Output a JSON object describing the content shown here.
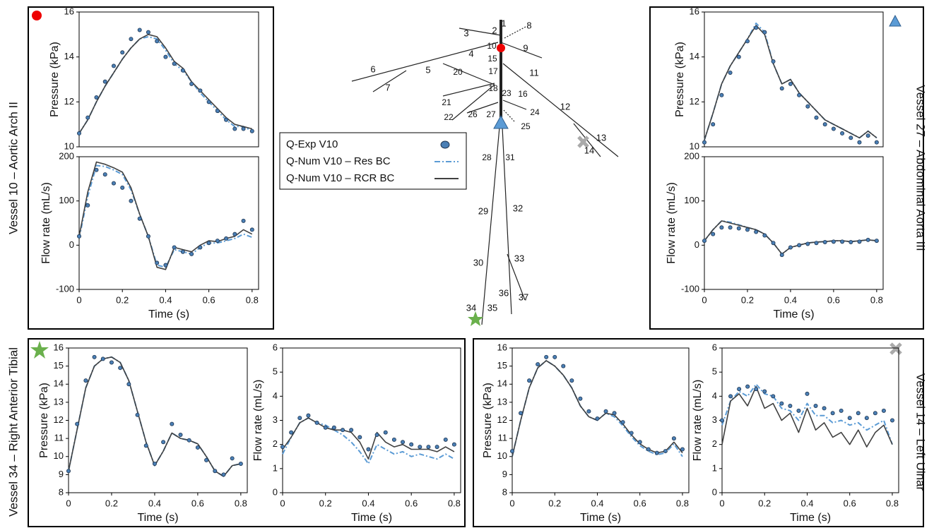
{
  "panels": [
    {
      "title": "Vessel 10 – Aortic Arch II"
    },
    {
      "title": "Vessel 27 – Abdominal Aorta III"
    },
    {
      "title": "Vessel 34 – Right Anterior Tibial"
    },
    {
      "title": "Vessel 14 – Left Ulnar"
    }
  ],
  "diagram": {
    "labels": [
      "1",
      "2",
      "3",
      "4",
      "5",
      "6",
      "7",
      "8",
      "9",
      "10",
      "11",
      "12",
      "13",
      "14",
      "15",
      "16",
      "17",
      "18",
      "20",
      "21",
      "22",
      "23",
      "24",
      "25",
      "26",
      "27",
      "28",
      "29",
      "30",
      "31",
      "32",
      "33",
      "34",
      "35",
      "36",
      "37"
    ]
  },
  "chart_data": [
    {
      "type": "line",
      "ylabel": "Pressure (kPa)",
      "xlim": [
        0,
        0.83
      ],
      "ylim": [
        10,
        16
      ],
      "yticks": [
        10,
        12,
        14,
        16
      ],
      "x": [
        0,
        0.04,
        0.08,
        0.12,
        0.16,
        0.2,
        0.24,
        0.28,
        0.32,
        0.36,
        0.4,
        0.44,
        0.48,
        0.52,
        0.56,
        0.6,
        0.64,
        0.68,
        0.72,
        0.76,
        0.8
      ],
      "series": [
        {
          "name": "Q-Exp  V10",
          "color": "#4a7fb5",
          "style": "markers",
          "values": [
            10.6,
            11.3,
            12.2,
            12.9,
            13.6,
            14.2,
            14.8,
            15.2,
            15.1,
            14.7,
            14.0,
            13.7,
            13.4,
            12.8,
            12.5,
            12.0,
            11.6,
            11.2,
            10.8,
            10.8,
            10.7
          ]
        },
        {
          "name": "Q-Num V10 – Res BC",
          "color": "#5b9bd5",
          "style": "dash",
          "values": [
            10.6,
            11.2,
            12.0,
            12.7,
            13.3,
            13.9,
            14.4,
            14.8,
            14.9,
            14.8,
            14.3,
            13.7,
            13.4,
            12.9,
            12.4,
            12.0,
            11.6,
            11.2,
            10.9,
            10.9,
            10.7
          ]
        },
        {
          "name": "Q-Num V10 – RCR BC",
          "color": "#404040",
          "style": "solid",
          "values": [
            10.6,
            11.2,
            12.0,
            12.7,
            13.3,
            13.9,
            14.4,
            14.8,
            15.0,
            14.9,
            14.4,
            13.8,
            13.5,
            12.9,
            12.5,
            12.1,
            11.7,
            11.3,
            11.0,
            10.9,
            10.8
          ]
        }
      ]
    },
    {
      "type": "line",
      "xlabel": "Time (s)",
      "ylabel": "Flow rate (mL/s)",
      "xlim": [
        0,
        0.83
      ],
      "ylim": [
        -100,
        200
      ],
      "xticks": [
        0,
        0.2,
        0.4,
        0.6,
        0.8
      ],
      "yticks": [
        -100,
        0,
        100,
        200
      ],
      "x": [
        0,
        0.04,
        0.08,
        0.12,
        0.16,
        0.2,
        0.24,
        0.28,
        0.32,
        0.36,
        0.4,
        0.44,
        0.48,
        0.52,
        0.56,
        0.6,
        0.64,
        0.68,
        0.72,
        0.76,
        0.8
      ],
      "series": [
        {
          "name": "Q-Exp  V10",
          "color": "#4a7fb5",
          "style": "markers",
          "values": [
            20,
            90,
            170,
            160,
            140,
            130,
            100,
            60,
            20,
            -40,
            -45,
            -5,
            -15,
            -20,
            -5,
            5,
            10,
            15,
            25,
            55,
            35
          ]
        },
        {
          "name": "Q-Num V10 – Res BC",
          "color": "#5b9bd5",
          "style": "dash",
          "values": [
            15,
            110,
            180,
            178,
            170,
            160,
            125,
            70,
            20,
            -45,
            -50,
            -10,
            -15,
            -20,
            -5,
            5,
            5,
            10,
            15,
            25,
            18
          ]
        },
        {
          "name": "Q-Num V10 – RCR BC",
          "color": "#404040",
          "style": "solid",
          "values": [
            20,
            120,
            188,
            183,
            175,
            165,
            130,
            70,
            20,
            -50,
            -55,
            -5,
            -10,
            -15,
            0,
            10,
            8,
            15,
            20,
            35,
            25
          ]
        }
      ]
    },
    {
      "type": "line",
      "ylabel": "Pressure (kPa)",
      "xlim": [
        0,
        0.83
      ],
      "ylim": [
        10,
        16
      ],
      "yticks": [
        10,
        12,
        14,
        16
      ],
      "x": [
        0,
        0.04,
        0.08,
        0.12,
        0.16,
        0.2,
        0.24,
        0.28,
        0.32,
        0.36,
        0.4,
        0.44,
        0.48,
        0.52,
        0.56,
        0.6,
        0.64,
        0.68,
        0.72,
        0.76,
        0.8
      ],
      "series": [
        {
          "name": "Q-Exp  V10",
          "color": "#4a7fb5",
          "style": "markers",
          "values": [
            10.2,
            11.0,
            12.3,
            13.3,
            14.0,
            14.7,
            15.3,
            15.1,
            13.8,
            12.6,
            12.8,
            12.3,
            11.8,
            11.3,
            11.0,
            10.8,
            10.6,
            10.4,
            10.2,
            10.5,
            10.2
          ]
        },
        {
          "name": "Q-Num V10 – Res BC",
          "color": "#5b9bd5",
          "style": "dash",
          "values": [
            10.3,
            11.5,
            12.8,
            13.6,
            14.2,
            14.8,
            15.5,
            15.1,
            13.7,
            12.8,
            13.0,
            12.4,
            12.0,
            11.6,
            11.2,
            11.0,
            10.8,
            10.6,
            10.4,
            10.7,
            10.4
          ]
        },
        {
          "name": "Q-Num V10 – RCR BC",
          "color": "#404040",
          "style": "solid",
          "values": [
            10.3,
            11.5,
            12.8,
            13.6,
            14.2,
            14.8,
            15.4,
            15.0,
            13.7,
            12.8,
            13.0,
            12.4,
            12.0,
            11.6,
            11.2,
            11.0,
            10.8,
            10.6,
            10.4,
            10.7,
            10.4
          ]
        }
      ]
    },
    {
      "type": "line",
      "xlabel": "Time (s)",
      "ylabel": "Flow rate (mL/s)",
      "xlim": [
        0,
        0.83
      ],
      "ylim": [
        -100,
        200
      ],
      "xticks": [
        0,
        0.2,
        0.4,
        0.6,
        0.8
      ],
      "yticks": [
        -100,
        0,
        100,
        200
      ],
      "x": [
        0,
        0.04,
        0.08,
        0.12,
        0.16,
        0.2,
        0.24,
        0.28,
        0.32,
        0.36,
        0.4,
        0.44,
        0.48,
        0.52,
        0.56,
        0.6,
        0.64,
        0.68,
        0.72,
        0.76,
        0.8
      ],
      "series": [
        {
          "name": "Q-Exp  V10",
          "color": "#4a7fb5",
          "style": "markers",
          "values": [
            10,
            25,
            40,
            40,
            38,
            35,
            30,
            22,
            5,
            -22,
            -5,
            0,
            3,
            5,
            7,
            8,
            8,
            7,
            8,
            12,
            10
          ]
        },
        {
          "name": "Q-Num V10 – Res BC",
          "color": "#5b9bd5",
          "style": "dash",
          "values": [
            10,
            35,
            55,
            52,
            46,
            40,
            35,
            25,
            5,
            -20,
            -5,
            0,
            5,
            7,
            8,
            10,
            10,
            8,
            10,
            12,
            10
          ]
        },
        {
          "name": "Q-Num V10 – RCR BC",
          "color": "#404040",
          "style": "solid",
          "values": [
            10,
            35,
            55,
            50,
            45,
            40,
            35,
            25,
            5,
            -20,
            -5,
            0,
            5,
            7,
            8,
            10,
            10,
            8,
            10,
            12,
            10
          ]
        }
      ]
    },
    {
      "type": "line",
      "xlabel": "Time (s)",
      "ylabel": "Pressure (kPa)",
      "xlim": [
        0,
        0.83
      ],
      "ylim": [
        8,
        16
      ],
      "xticks": [
        0,
        0.2,
        0.4,
        0.6,
        0.8
      ],
      "yticks": [
        8,
        9,
        10,
        11,
        12,
        13,
        14,
        15,
        16
      ],
      "x": [
        0,
        0.04,
        0.08,
        0.12,
        0.16,
        0.2,
        0.24,
        0.28,
        0.32,
        0.36,
        0.4,
        0.44,
        0.48,
        0.52,
        0.56,
        0.6,
        0.64,
        0.68,
        0.72,
        0.76,
        0.8
      ],
      "series": [
        {
          "name": "Q-Exp  V10",
          "color": "#4a7fb5",
          "style": "markers",
          "values": [
            9.2,
            11.8,
            14.2,
            15.5,
            15.4,
            15.2,
            14.9,
            14.0,
            12.3,
            10.6,
            9.6,
            10.8,
            11.8,
            11.2,
            10.9,
            10.5,
            9.8,
            9.2,
            9.0,
            9.9,
            9.6
          ]
        },
        {
          "name": "Q-Num V10 – Res BC",
          "color": "#5b9bd5",
          "style": "dash",
          "values": [
            9.2,
            11.5,
            13.8,
            15.0,
            15.4,
            15.5,
            15.2,
            14.2,
            12.5,
            10.8,
            9.5,
            10.3,
            11.3,
            11.0,
            10.9,
            10.7,
            10.0,
            9.2,
            8.9,
            9.5,
            9.6
          ]
        },
        {
          "name": "Q-Num V10 – RCR BC",
          "color": "#404040",
          "style": "solid",
          "values": [
            9.2,
            11.5,
            13.8,
            15.0,
            15.4,
            15.5,
            15.2,
            14.2,
            12.5,
            10.8,
            9.5,
            10.3,
            11.3,
            11.0,
            10.9,
            10.7,
            10.0,
            9.2,
            8.9,
            9.5,
            9.6
          ]
        }
      ]
    },
    {
      "type": "line",
      "xlabel": "Time (s)",
      "ylabel": "Flow rate (mL/s)",
      "xlim": [
        0,
        0.83
      ],
      "ylim": [
        0,
        6
      ],
      "xticks": [
        0,
        0.2,
        0.4,
        0.6,
        0.8
      ],
      "yticks": [
        0,
        1,
        2,
        3,
        4,
        5,
        6
      ],
      "x": [
        0,
        0.04,
        0.08,
        0.12,
        0.16,
        0.2,
        0.24,
        0.28,
        0.32,
        0.36,
        0.4,
        0.44,
        0.48,
        0.52,
        0.56,
        0.6,
        0.64,
        0.68,
        0.72,
        0.76,
        0.8
      ],
      "series": [
        {
          "name": "Q-Exp  V10",
          "color": "#4a7fb5",
          "style": "markers",
          "values": [
            1.9,
            2.5,
            3.1,
            3.2,
            2.9,
            2.7,
            2.7,
            2.6,
            2.6,
            2.3,
            1.8,
            2.4,
            2.5,
            2.2,
            2.1,
            2.0,
            1.9,
            1.9,
            1.9,
            2.2,
            2.0
          ]
        },
        {
          "name": "Q-Num V10 – Res BC",
          "color": "#5b9bd5",
          "style": "dash",
          "values": [
            1.6,
            2.3,
            2.9,
            3.1,
            2.9,
            2.8,
            2.6,
            2.4,
            2.1,
            1.7,
            1.2,
            2.0,
            1.8,
            1.6,
            1.7,
            1.5,
            1.6,
            1.5,
            1.4,
            1.6,
            1.4
          ]
        },
        {
          "name": "Q-Num V10 – RCR BC",
          "color": "#404040",
          "style": "solid",
          "values": [
            1.8,
            2.3,
            2.9,
            3.1,
            2.9,
            2.7,
            2.6,
            2.6,
            2.5,
            2.1,
            1.4,
            2.5,
            2.1,
            1.9,
            2.0,
            1.8,
            1.8,
            1.8,
            1.7,
            1.9,
            1.7
          ]
        }
      ]
    },
    {
      "type": "line",
      "xlabel": "Time (s)",
      "ylabel": "Pressure (kPa)",
      "xlim": [
        0,
        0.83
      ],
      "ylim": [
        8,
        16
      ],
      "xticks": [
        0,
        0.2,
        0.4,
        0.6,
        0.8
      ],
      "yticks": [
        8,
        9,
        10,
        11,
        12,
        13,
        14,
        15,
        16
      ],
      "x": [
        0,
        0.04,
        0.08,
        0.12,
        0.16,
        0.2,
        0.24,
        0.28,
        0.32,
        0.36,
        0.4,
        0.44,
        0.48,
        0.52,
        0.56,
        0.6,
        0.64,
        0.68,
        0.72,
        0.76,
        0.8
      ],
      "series": [
        {
          "name": "Q-Exp  V10",
          "color": "#4a7fb5",
          "style": "markers",
          "values": [
            10.3,
            12.4,
            14.2,
            15.1,
            15.5,
            15.5,
            15.0,
            14.2,
            13.2,
            12.5,
            12.1,
            12.5,
            12.4,
            11.9,
            11.3,
            10.8,
            10.4,
            10.2,
            10.3,
            11.0,
            10.4
          ]
        },
        {
          "name": "Q-Num V10 – Res BC",
          "color": "#5b9bd5",
          "style": "dash",
          "values": [
            10.0,
            12.0,
            13.8,
            14.9,
            15.3,
            15.0,
            14.5,
            13.8,
            12.8,
            12.2,
            12.0,
            12.4,
            12.2,
            11.7,
            11.1,
            10.6,
            10.3,
            10.1,
            10.2,
            10.7,
            10.0
          ]
        },
        {
          "name": "Q-Num V10 – RCR BC",
          "color": "#404040",
          "style": "solid",
          "values": [
            10.0,
            12.0,
            13.8,
            14.9,
            15.3,
            15.0,
            14.5,
            13.8,
            12.8,
            12.2,
            12.0,
            12.4,
            12.3,
            11.8,
            11.2,
            10.7,
            10.4,
            10.2,
            10.3,
            10.8,
            10.2
          ]
        }
      ]
    },
    {
      "type": "line",
      "xlabel": "Time (s)",
      "ylabel": "Flow rate (mL/s)",
      "xlim": [
        0,
        0.83
      ],
      "ylim": [
        0,
        6
      ],
      "xticks": [
        0,
        0.2,
        0.4,
        0.6,
        0.8
      ],
      "yticks": [
        0,
        1,
        2,
        3,
        4,
        5,
        6
      ],
      "x": [
        0,
        0.04,
        0.08,
        0.12,
        0.16,
        0.2,
        0.24,
        0.28,
        0.32,
        0.36,
        0.4,
        0.44,
        0.48,
        0.52,
        0.56,
        0.6,
        0.64,
        0.68,
        0.72,
        0.76,
        0.8
      ],
      "series": [
        {
          "name": "Q-Exp  V10",
          "color": "#4a7fb5",
          "style": "markers",
          "values": [
            3.0,
            4.0,
            4.3,
            4.4,
            4.3,
            4.2,
            4.0,
            3.7,
            3.6,
            3.4,
            4.1,
            3.6,
            3.5,
            3.3,
            3.4,
            3.1,
            3.3,
            3.1,
            3.3,
            3.4,
            3.0
          ]
        },
        {
          "name": "Q-Num V10 – Res BC",
          "color": "#5b9bd5",
          "style": "dash",
          "values": [
            2.8,
            3.8,
            4.2,
            4.0,
            4.5,
            4.1,
            4.0,
            3.5,
            3.4,
            3.0,
            3.7,
            3.2,
            3.2,
            2.9,
            3.0,
            2.8,
            2.9,
            2.6,
            2.8,
            3.0,
            2.0
          ]
        },
        {
          "name": "Q-Num V10 – RCR BC",
          "color": "#404040",
          "style": "solid",
          "values": [
            2.0,
            3.8,
            4.1,
            3.6,
            4.4,
            3.5,
            3.7,
            3.0,
            3.3,
            2.5,
            3.5,
            2.6,
            2.9,
            2.3,
            2.5,
            2.0,
            2.6,
            1.9,
            2.5,
            2.8,
            2.0
          ]
        }
      ]
    }
  ]
}
